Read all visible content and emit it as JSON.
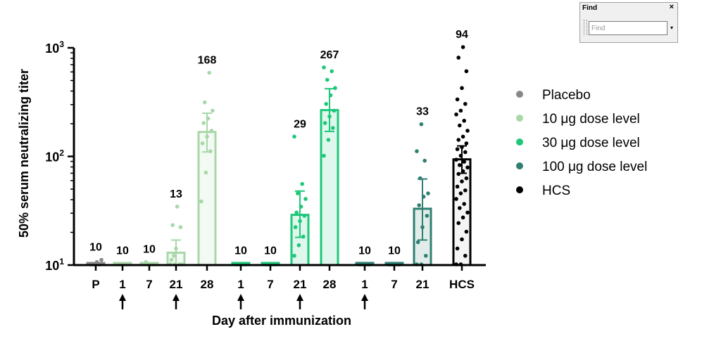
{
  "chart_data": {
    "type": "bar",
    "ylabel": "50% serum neutralizing titer",
    "xlabel": "Day after immunization",
    "yscale": "log",
    "ylim": [
      10,
      1000
    ],
    "yticks": [
      {
        "value": 10,
        "base": "10",
        "exp": "1"
      },
      {
        "value": 100,
        "base": "10",
        "exp": "2"
      },
      {
        "value": 1000,
        "base": "10",
        "exp": "3"
      }
    ],
    "colors": {
      "placebo": "#888888",
      "dose10": "#a8d8a8",
      "dose30": "#1ec77a",
      "dose100": "#2f7f72",
      "hcs": "#000000"
    },
    "bars": [
      {
        "category": "P",
        "group": "placebo",
        "value": 10,
        "label": "10",
        "err": [
          10,
          10.4
        ],
        "points": [
          10,
          10,
          10,
          10,
          10,
          10,
          10,
          10.5,
          11,
          10
        ]
      },
      {
        "category": "1",
        "group": "dose10",
        "value": 10,
        "label": "10",
        "err": [
          10,
          10.2
        ],
        "arrow": true,
        "points": [
          10,
          10,
          10,
          10,
          10,
          10,
          10,
          10,
          10,
          10
        ]
      },
      {
        "category": "7",
        "group": "dose10",
        "value": 10,
        "label": "10",
        "err": [
          10,
          10.3
        ],
        "points": [
          10,
          10,
          10,
          10,
          10,
          10,
          10.5,
          10,
          10,
          10
        ]
      },
      {
        "category": "21",
        "group": "dose10",
        "value": 13,
        "label": "13",
        "err": [
          10,
          17
        ],
        "arrow": true,
        "points": [
          10,
          10,
          10,
          11,
          14,
          22,
          23,
          34,
          10,
          12
        ]
      },
      {
        "category": "28",
        "group": "dose10",
        "value": 168,
        "label": "168",
        "err": [
          110,
          250
        ],
        "points": [
          38,
          70,
          110,
          130,
          150,
          170,
          200,
          220,
          260,
          310,
          580
        ]
      },
      {
        "category": "1",
        "group": "dose30",
        "value": 10,
        "label": "10",
        "err": [
          10,
          10.2
        ],
        "arrow": true,
        "points": [
          10,
          10,
          10,
          10,
          10,
          10,
          10,
          10,
          10,
          10
        ]
      },
      {
        "category": "7",
        "group": "dose30",
        "value": 10,
        "label": "10",
        "err": [
          10,
          10.2
        ],
        "points": [
          10,
          10,
          10,
          10,
          10,
          10,
          10,
          10,
          10,
          10
        ]
      },
      {
        "category": "21",
        "group": "dose30",
        "value": 29,
        "label": "29",
        "err": [
          18,
          48
        ],
        "arrow": true,
        "points": [
          12,
          15,
          18,
          22,
          25,
          28,
          30,
          34,
          40,
          45,
          55,
          150
        ]
      },
      {
        "category": "28",
        "group": "dose30",
        "value": 267,
        "label": "267",
        "err": [
          170,
          420
        ],
        "points": [
          100,
          140,
          180,
          200,
          230,
          260,
          300,
          360,
          420,
          500,
          600,
          650
        ]
      },
      {
        "category": "1",
        "group": "dose100",
        "value": 10,
        "label": "10",
        "err": [
          10,
          10.2
        ],
        "arrow": true,
        "points": [
          10,
          10,
          10,
          10,
          10,
          10,
          10,
          10,
          10,
          10
        ]
      },
      {
        "category": "7",
        "group": "dose100",
        "value": 10,
        "label": "10",
        "err": [
          10,
          10.2
        ],
        "points": [
          10,
          10,
          10,
          10,
          10,
          10,
          10,
          10,
          10,
          10
        ]
      },
      {
        "category": "21",
        "group": "dose100",
        "value": 33,
        "label": "33",
        "err": [
          17,
          62
        ],
        "points": [
          10,
          10,
          12,
          16,
          22,
          28,
          35,
          42,
          45,
          62,
          90,
          110,
          195
        ]
      },
      {
        "category": "HCS",
        "group": "hcs",
        "value": 94,
        "label": "94",
        "err": [
          70,
          125
        ],
        "points": [
          10,
          10,
          12,
          14,
          17,
          20,
          24,
          27,
          30,
          33,
          36,
          40,
          45,
          48,
          52,
          58,
          62,
          68,
          72,
          78,
          82,
          88,
          92,
          100,
          108,
          115,
          120,
          130,
          140,
          150,
          170,
          190,
          210,
          240,
          260,
          300,
          330,
          420,
          600,
          800,
          1000
        ]
      }
    ],
    "legend": [
      {
        "label": "Placebo",
        "group": "placebo"
      },
      {
        "label": "10 μg dose level",
        "group": "dose10"
      },
      {
        "label": "30 μg dose level",
        "group": "dose30"
      },
      {
        "label": "100 μg dose level",
        "group": "dose100"
      },
      {
        "label": "HCS",
        "group": "hcs"
      }
    ],
    "legend_position": "right"
  },
  "find_panel": {
    "title": "Find",
    "placeholder": "Find",
    "close_glyph": "×",
    "dropdown_glyph": "▾"
  }
}
